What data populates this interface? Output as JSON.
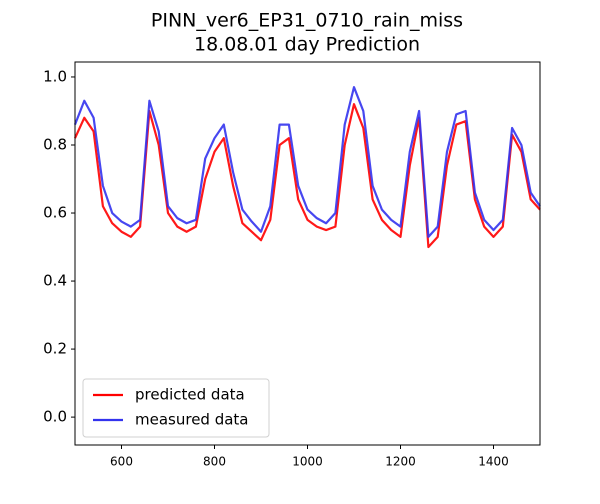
{
  "chart_data": {
    "type": "line",
    "title": "PINN_ver6_EP31_0710_rain_miss",
    "subtitle": "18.08.01 day Prediction",
    "x": [
      500,
      520,
      540,
      560,
      580,
      600,
      620,
      640,
      660,
      680,
      700,
      720,
      740,
      760,
      780,
      800,
      820,
      840,
      860,
      880,
      900,
      920,
      940,
      960,
      980,
      1000,
      1020,
      1040,
      1060,
      1080,
      1100,
      1120,
      1140,
      1160,
      1180,
      1200,
      1220,
      1240,
      1260,
      1280,
      1300,
      1320,
      1340,
      1360,
      1380,
      1400,
      1420,
      1440,
      1460,
      1480,
      1500
    ],
    "series": [
      {
        "name": "predicted data",
        "color": "#ff0000",
        "values": [
          0.82,
          0.88,
          0.84,
          0.62,
          0.57,
          0.545,
          0.53,
          0.56,
          0.9,
          0.8,
          0.6,
          0.56,
          0.545,
          0.56,
          0.7,
          0.78,
          0.82,
          0.68,
          0.57,
          0.545,
          0.52,
          0.58,
          0.8,
          0.82,
          0.64,
          0.58,
          0.56,
          0.55,
          0.56,
          0.8,
          0.92,
          0.85,
          0.64,
          0.58,
          0.55,
          0.53,
          0.74,
          0.88,
          0.5,
          0.53,
          0.74,
          0.86,
          0.87,
          0.64,
          0.56,
          0.53,
          0.56,
          0.83,
          0.78,
          0.64,
          0.61
        ]
      },
      {
        "name": "measured data",
        "color": "#3333ee",
        "values": [
          0.86,
          0.93,
          0.88,
          0.68,
          0.6,
          0.575,
          0.56,
          0.58,
          0.93,
          0.84,
          0.62,
          0.585,
          0.57,
          0.58,
          0.76,
          0.82,
          0.86,
          0.72,
          0.61,
          0.575,
          0.545,
          0.62,
          0.86,
          0.86,
          0.68,
          0.61,
          0.585,
          0.57,
          0.6,
          0.86,
          0.97,
          0.9,
          0.68,
          0.61,
          0.58,
          0.56,
          0.78,
          0.9,
          0.53,
          0.56,
          0.78,
          0.89,
          0.9,
          0.66,
          0.58,
          0.55,
          0.58,
          0.85,
          0.8,
          0.66,
          0.62
        ]
      }
    ],
    "xlim": [
      500,
      1500
    ],
    "ylim": [
      -0.082,
      1.044
    ],
    "xticks": [
      600,
      800,
      1000,
      1200,
      1400
    ],
    "yticks": [
      {
        "value": 0,
        "label": "0.0"
      },
      0.2,
      0.4,
      0.6,
      0.8,
      {
        "value": 1,
        "label": "1.0"
      }
    ],
    "legend": "lower left"
  }
}
